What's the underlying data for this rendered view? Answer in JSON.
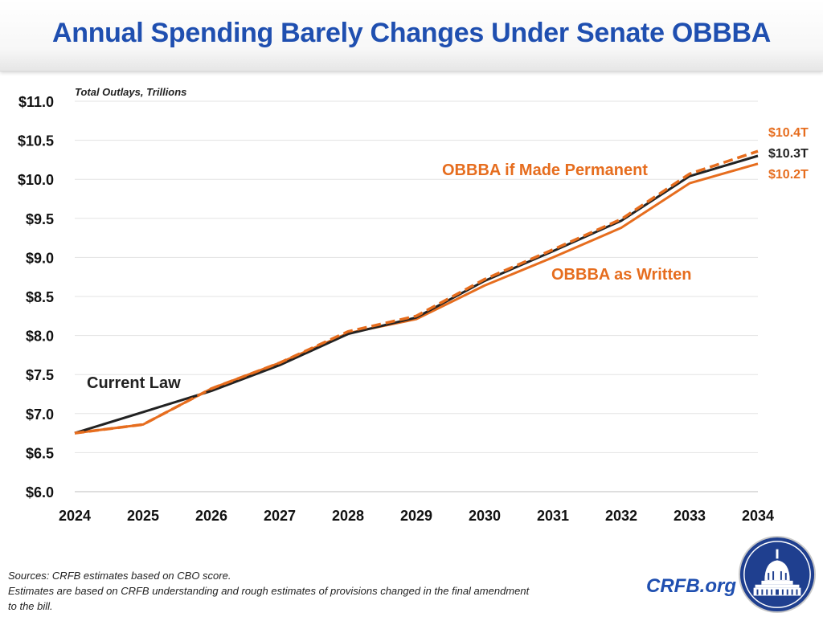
{
  "header": {
    "title": "Annual Spending Barely Changes Under Senate OBBBA"
  },
  "footer": {
    "sources": "Sources: CRFB estimates based on CBO score.",
    "note_line1": "Estimates are based on CRFB understanding and rough estimates of provisions changed in the final amendment",
    "note_line2": "to the bill.",
    "site": "CRFB.org"
  },
  "colors": {
    "title": "#1f4fb0",
    "current_law": "#222222",
    "obbba": "#e66d1e"
  },
  "chart_data": {
    "type": "line",
    "title": "Total Outlays, Trillions",
    "x": [
      "2024",
      "2025",
      "2026",
      "2027",
      "2028",
      "2029",
      "2030",
      "2031",
      "2032",
      "2033",
      "2034"
    ],
    "ylim": [
      6.0,
      11.0
    ],
    "yticks": [
      "$6.0",
      "$6.5",
      "$7.0",
      "$7.5",
      "$8.0",
      "$8.5",
      "$9.0",
      "$9.5",
      "$10.0",
      "$10.5",
      "$11.0"
    ],
    "grid": true,
    "series": [
      {
        "name": "Current Law",
        "style": "solid",
        "color": "#222222",
        "values": [
          6.75,
          7.02,
          7.29,
          7.62,
          8.02,
          8.23,
          8.7,
          9.08,
          9.47,
          10.04,
          10.3
        ]
      },
      {
        "name": "OBBBA as Written",
        "style": "solid",
        "color": "#e66d1e",
        "values": [
          6.75,
          6.86,
          7.32,
          7.65,
          8.03,
          8.21,
          8.64,
          9.0,
          9.38,
          9.95,
          10.2
        ]
      },
      {
        "name": "OBBBA if Made Permanent",
        "style": "dashed",
        "color": "#e66d1e",
        "values": [
          6.75,
          6.86,
          7.32,
          7.65,
          8.05,
          8.25,
          8.72,
          9.1,
          9.49,
          10.07,
          10.36
        ]
      }
    ],
    "end_labels": [
      "$10.4T",
      "$10.3T",
      "$10.2T"
    ]
  }
}
